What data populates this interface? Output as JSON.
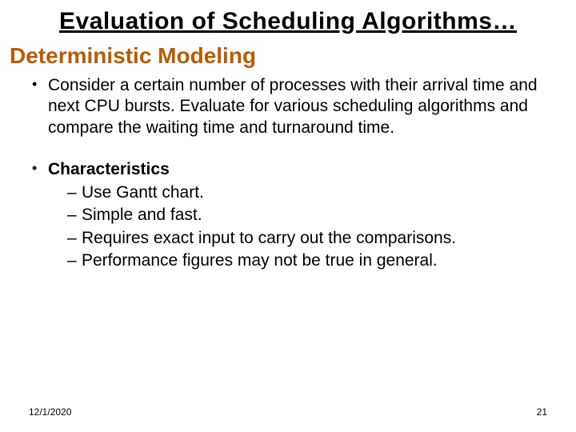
{
  "title": "Evaluation of Scheduling Algorithms…",
  "subtitle": "Deterministic Modeling",
  "bullet1": "Consider  a certain number of processes with their arrival time and next CPU bursts. Evaluate for various scheduling algorithms and compare the waiting time and turnaround time.",
  "char_label": "Characteristics",
  "subs": {
    "a": "Use Gantt chart.",
    "b": "Simple and fast.",
    "c": "Requires exact input to carry out the comparisons.",
    "d": "Performance figures may not be true in general."
  },
  "footer": {
    "date": "12/1/2020",
    "page": "21"
  },
  "colors": {
    "subtitle": "#b85c00",
    "text": "#000000",
    "background": "#ffffff"
  },
  "fonts": {
    "title_size": 30,
    "subtitle_size": 28,
    "body_size": 21,
    "footer_size": 12
  }
}
